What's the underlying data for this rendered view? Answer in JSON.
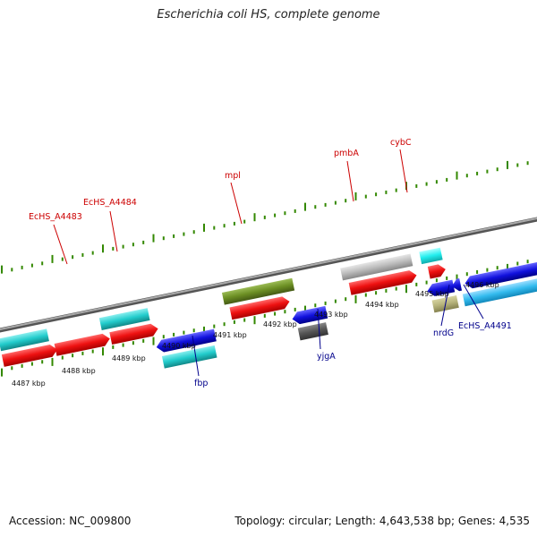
{
  "title": "Escherichia coli HS, complete genome",
  "footer": {
    "accession": "Accession: NC_009800",
    "topology": "Topology: circular; Length: 4,643,538 bp; Genes: 4,535"
  },
  "kbp_ticks": [
    "4487 kbp",
    "4488 kbp",
    "4489 kbp",
    "4490 kbp",
    "4491 kbp",
    "4492 kbp",
    "4493 kbp",
    "4494 kbp",
    "4495 kbp",
    "4496 kbp"
  ],
  "genes_forward": [
    "EcHS_A4483",
    "EcHS_A4484",
    "mpl",
    "pmbA",
    "cybC"
  ],
  "genes_reverse": [
    "fbp",
    "yjgA",
    "nrdG",
    "EcHS_A4491"
  ],
  "colors": {
    "red": "#ee1111",
    "cyan": "#22cccc",
    "blue": "#1111dd",
    "olive": "#6b8e23",
    "gray": "#bbbbbb",
    "darkgray": "#555555",
    "khaki": "#b5b27a",
    "bright_cyan": "#22eeee",
    "tick_green": "#338800",
    "backbone": "#888888"
  }
}
